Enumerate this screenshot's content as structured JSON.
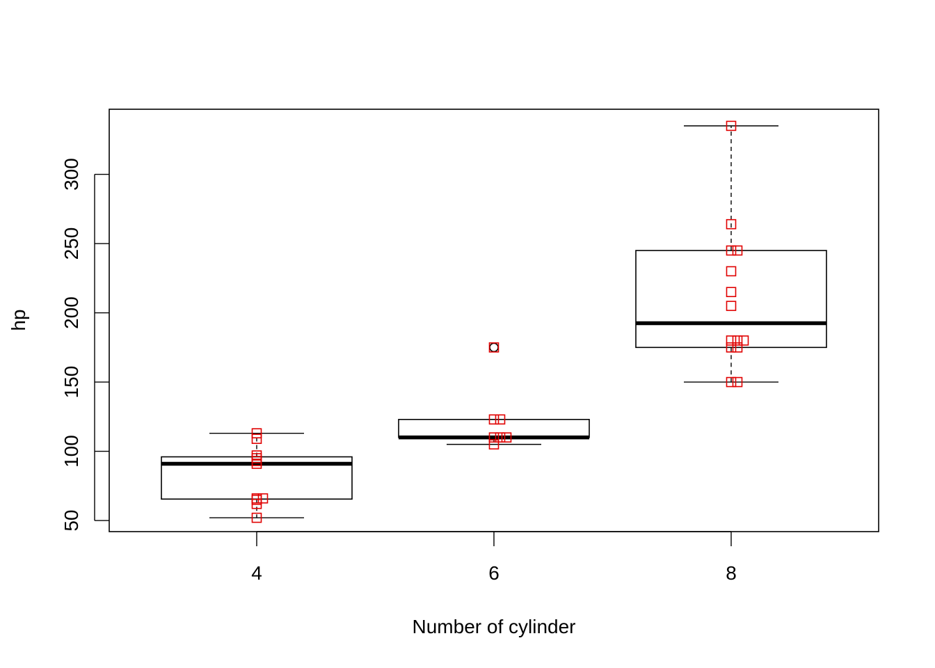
{
  "chart_data": {
    "type": "box",
    "title": "",
    "xlabel": "Number of cylinder",
    "ylabel": "hp",
    "categories": [
      "4",
      "6",
      "8"
    ],
    "yticks": [
      50,
      100,
      150,
      200,
      250,
      300
    ],
    "ylim": [
      42,
      347
    ],
    "grid": false,
    "legend": "none",
    "colors": {
      "box": "#000000",
      "points": "#e00000",
      "median": "#000000"
    },
    "boxes": [
      {
        "category": "4",
        "whisker_low": 52,
        "q1": 65.5,
        "median": 91,
        "q3": 96,
        "whisker_high": 113,
        "outliers": []
      },
      {
        "category": "6",
        "whisker_low": 105,
        "q1": 110,
        "median": 110,
        "q3": 123,
        "whisker_high": 123,
        "outliers": [
          175
        ]
      },
      {
        "category": "8",
        "whisker_low": 150,
        "q1": 175,
        "median": 192.5,
        "q3": 245,
        "whisker_high": 335,
        "outliers": []
      }
    ],
    "points": [
      {
        "category": "4",
        "values": [
          93,
          62,
          95,
          66,
          52,
          65,
          97,
          66,
          91,
          113,
          109
        ]
      },
      {
        "category": "6",
        "values": [
          110,
          110,
          110,
          105,
          123,
          123,
          175
        ]
      },
      {
        "category": "8",
        "values": [
          175,
          245,
          180,
          180,
          180,
          205,
          215,
          230,
          150,
          150,
          245,
          175,
          264,
          335
        ]
      }
    ]
  }
}
